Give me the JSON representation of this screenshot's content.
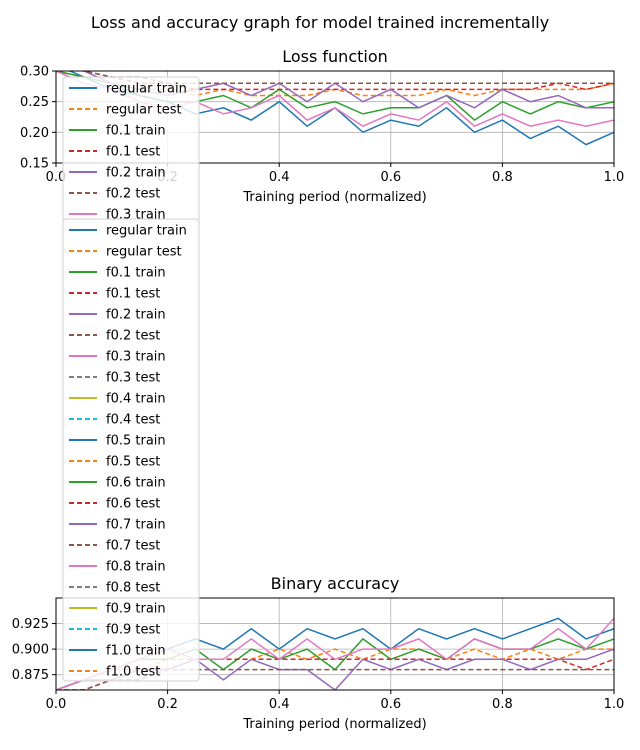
{
  "suptitle": "Loss and accuracy graph for model trained incrementally",
  "chart_data": [
    {
      "type": "line",
      "title": "Loss function",
      "xlabel": "Training period (normalized)",
      "ylabel": "",
      "xlim": [
        0.0,
        1.0
      ],
      "ylim": [
        0.15,
        0.3
      ],
      "xticks": [
        "0.0",
        "0.2",
        "0.4",
        "0.6",
        "0.8",
        "1.0"
      ],
      "yticks": [
        "0.15",
        "0.20",
        "0.25",
        "0.30"
      ],
      "grid": true,
      "legend_placement": "upper-left",
      "x": [
        0.0,
        0.05,
        0.1,
        0.15,
        0.2,
        0.25,
        0.3,
        0.35,
        0.4,
        0.45,
        0.5,
        0.55,
        0.6,
        0.65,
        0.7,
        0.75,
        0.8,
        0.85,
        0.9,
        0.95,
        1.0
      ],
      "series": [
        {
          "name": "regular train",
          "style": "solid",
          "color": "#1f77b4",
          "values": [
            0.31,
            0.29,
            0.27,
            0.26,
            0.25,
            0.23,
            0.24,
            0.22,
            0.25,
            0.21,
            0.24,
            0.2,
            0.22,
            0.21,
            0.24,
            0.2,
            0.22,
            0.19,
            0.21,
            0.18,
            0.2
          ]
        },
        {
          "name": "regular test",
          "style": "dashed",
          "color": "#ff7f0e",
          "values": [
            0.3,
            0.29,
            0.28,
            0.27,
            0.27,
            0.26,
            0.27,
            0.26,
            0.26,
            0.26,
            0.27,
            0.26,
            0.26,
            0.26,
            0.27,
            0.26,
            0.27,
            0.27,
            0.27,
            0.27,
            0.28
          ]
        },
        {
          "name": "f0.1 train",
          "style": "solid",
          "color": "#2ca02c",
          "values": [
            0.3,
            0.29,
            0.28,
            0.26,
            0.25,
            0.25,
            0.26,
            0.24,
            0.27,
            0.24,
            0.25,
            0.23,
            0.24,
            0.24,
            0.26,
            0.22,
            0.25,
            0.23,
            0.25,
            0.24,
            0.25
          ]
        },
        {
          "name": "f0.1 test",
          "style": "dashed",
          "color": "#d62728",
          "values": [
            0.31,
            0.3,
            0.29,
            0.28,
            0.28,
            0.27,
            0.27,
            0.27,
            0.27,
            0.27,
            0.27,
            0.27,
            0.27,
            0.27,
            0.27,
            0.27,
            0.27,
            0.27,
            0.28,
            0.27,
            0.28
          ]
        },
        {
          "name": "f0.2 train",
          "style": "solid",
          "color": "#9467bd",
          "values": [
            0.31,
            0.3,
            0.28,
            0.27,
            0.26,
            0.27,
            0.28,
            0.26,
            0.28,
            0.25,
            0.28,
            0.25,
            0.27,
            0.24,
            0.26,
            0.24,
            0.27,
            0.25,
            0.26,
            0.24,
            0.24
          ]
        },
        {
          "name": "f0.2 test",
          "style": "dashed",
          "color": "#8c564b",
          "values": [
            0.31,
            0.3,
            0.29,
            0.29,
            0.28,
            0.28,
            0.28,
            0.28,
            0.28,
            0.28,
            0.28,
            0.28,
            0.28,
            0.28,
            0.28,
            0.28,
            0.28,
            0.28,
            0.28,
            0.28,
            0.28
          ]
        },
        {
          "name": "f0.3 train",
          "style": "solid",
          "color": "#e377c2",
          "values": [
            0.3,
            0.28,
            0.27,
            0.25,
            0.24,
            0.25,
            0.23,
            0.24,
            0.26,
            0.22,
            0.24,
            0.21,
            0.23,
            0.22,
            0.25,
            0.21,
            0.23,
            0.21,
            0.22,
            0.21,
            0.22
          ]
        }
      ]
    },
    {
      "type": "line",
      "title": "Binary accuracy",
      "xlabel": "Training period (normalized)",
      "ylabel": "",
      "xlim": [
        0.0,
        1.0
      ],
      "ylim": [
        0.86,
        0.95
      ],
      "xticks": [
        "0.0",
        "0.2",
        "0.4",
        "0.6",
        "0.8",
        "1.0"
      ],
      "yticks": [
        "0.875",
        "0.900",
        "0.925"
      ],
      "grid": true,
      "legend_placement": "upper-left",
      "x": [
        0.0,
        0.05,
        0.1,
        0.15,
        0.2,
        0.25,
        0.3,
        0.35,
        0.4,
        0.45,
        0.5,
        0.55,
        0.6,
        0.65,
        0.7,
        0.75,
        0.8,
        0.85,
        0.9,
        0.95,
        1.0
      ],
      "series": [
        {
          "name": "regular train",
          "style": "solid",
          "color": "#1f77b4",
          "values": [
            0.86,
            0.87,
            0.88,
            0.89,
            0.9,
            0.91,
            0.9,
            0.92,
            0.9,
            0.92,
            0.91,
            0.92,
            0.9,
            0.92,
            0.91,
            0.92,
            0.91,
            0.92,
            0.93,
            0.91,
            0.92
          ]
        },
        {
          "name": "regular test",
          "style": "dashed",
          "color": "#ff7f0e",
          "values": [
            0.86,
            0.87,
            0.88,
            0.88,
            0.89,
            0.89,
            0.89,
            0.89,
            0.9,
            0.89,
            0.9,
            0.89,
            0.9,
            0.9,
            0.89,
            0.9,
            0.89,
            0.9,
            0.89,
            0.9,
            0.9
          ]
        },
        {
          "name": "f0.1 train",
          "style": "solid",
          "color": "#2ca02c",
          "values": [
            0.86,
            0.87,
            0.88,
            0.89,
            0.89,
            0.9,
            0.88,
            0.9,
            0.89,
            0.9,
            0.88,
            0.91,
            0.89,
            0.9,
            0.89,
            0.91,
            0.9,
            0.9,
            0.91,
            0.9,
            0.91
          ]
        },
        {
          "name": "f0.1 test",
          "style": "dashed",
          "color": "#d62728",
          "values": [
            0.86,
            0.86,
            0.87,
            0.88,
            0.88,
            0.89,
            0.89,
            0.89,
            0.89,
            0.89,
            0.89,
            0.89,
            0.89,
            0.89,
            0.89,
            0.89,
            0.89,
            0.89,
            0.89,
            0.88,
            0.89
          ]
        },
        {
          "name": "f0.2 train",
          "style": "solid",
          "color": "#9467bd",
          "values": [
            0.86,
            0.87,
            0.87,
            0.88,
            0.88,
            0.89,
            0.87,
            0.89,
            0.88,
            0.88,
            0.86,
            0.89,
            0.88,
            0.89,
            0.88,
            0.89,
            0.89,
            0.88,
            0.89,
            0.89,
            0.9
          ]
        },
        {
          "name": "f0.2 test",
          "style": "dashed",
          "color": "#8c564b",
          "values": [
            0.86,
            0.86,
            0.87,
            0.87,
            0.88,
            0.88,
            0.88,
            0.88,
            0.88,
            0.88,
            0.88,
            0.88,
            0.88,
            0.88,
            0.88,
            0.88,
            0.88,
            0.88,
            0.88,
            0.88,
            0.88
          ]
        },
        {
          "name": "f0.3 train",
          "style": "solid",
          "color": "#e377c2",
          "values": [
            0.86,
            0.87,
            0.88,
            0.89,
            0.9,
            0.89,
            0.89,
            0.91,
            0.89,
            0.91,
            0.89,
            0.9,
            0.9,
            0.91,
            0.89,
            0.91,
            0.9,
            0.9,
            0.92,
            0.9,
            0.93
          ]
        }
      ]
    }
  ],
  "legend_entries": [
    {
      "label": "regular train",
      "color": "#1f77b4",
      "style": "solid"
    },
    {
      "label": "regular test",
      "color": "#ff7f0e",
      "style": "dashed"
    },
    {
      "label": "f0.1 train",
      "color": "#2ca02c",
      "style": "solid"
    },
    {
      "label": "f0.1 test",
      "color": "#d62728",
      "style": "dashed"
    },
    {
      "label": "f0.2 train",
      "color": "#9467bd",
      "style": "solid"
    },
    {
      "label": "f0.2 test",
      "color": "#8c564b",
      "style": "dashed"
    },
    {
      "label": "f0.3 train",
      "color": "#e377c2",
      "style": "solid"
    },
    {
      "label": "f0.3 test",
      "color": "#7f7f7f",
      "style": "dashed"
    },
    {
      "label": "f0.4 train",
      "color": "#bcbd22",
      "style": "solid"
    },
    {
      "label": "f0.4 test",
      "color": "#17becf",
      "style": "dashed"
    },
    {
      "label": "f0.5 train",
      "color": "#1f77b4",
      "style": "solid"
    },
    {
      "label": "f0.5 test",
      "color": "#ff7f0e",
      "style": "dashed"
    },
    {
      "label": "f0.6 train",
      "color": "#2ca02c",
      "style": "solid"
    },
    {
      "label": "f0.6 test",
      "color": "#d62728",
      "style": "dashed"
    },
    {
      "label": "f0.7 train",
      "color": "#9467bd",
      "style": "solid"
    },
    {
      "label": "f0.7 test",
      "color": "#8c564b",
      "style": "dashed"
    },
    {
      "label": "f0.8 train",
      "color": "#e377c2",
      "style": "solid"
    },
    {
      "label": "f0.8 test",
      "color": "#7f7f7f",
      "style": "dashed"
    },
    {
      "label": "f0.9 train",
      "color": "#bcbd22",
      "style": "solid"
    },
    {
      "label": "f0.9 test",
      "color": "#17becf",
      "style": "dashed"
    },
    {
      "label": "f1.0 train",
      "color": "#1f77b4",
      "style": "solid"
    },
    {
      "label": "f1.0 test",
      "color": "#ff7f0e",
      "style": "dashed"
    }
  ]
}
